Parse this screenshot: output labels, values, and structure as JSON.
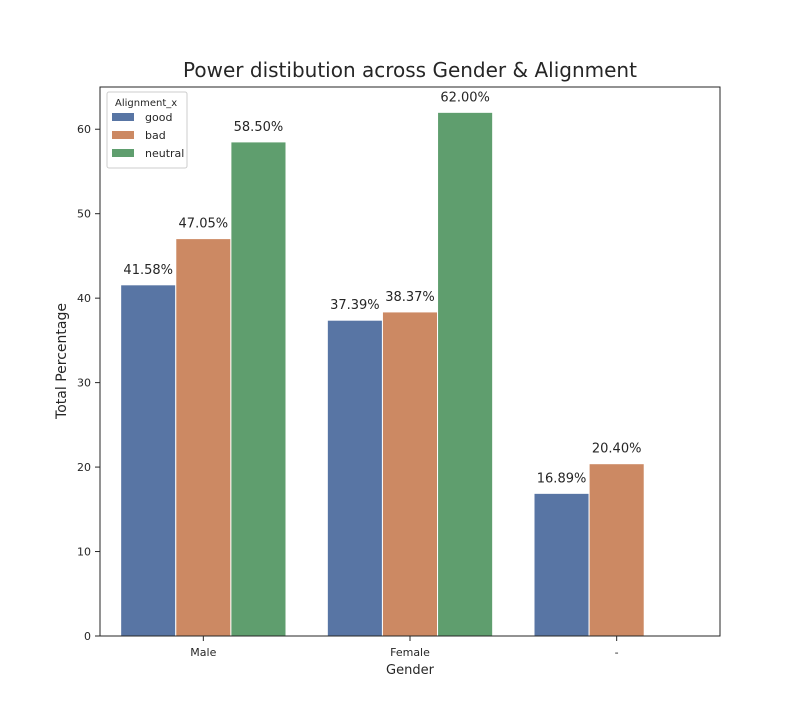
{
  "chart_data": {
    "type": "bar",
    "title": "Power distibution across Gender & Alignment",
    "xlabel": "Gender",
    "ylabel": "Total Percentage",
    "categories": [
      "Male",
      "Female",
      "-"
    ],
    "ylim": [
      0,
      65
    ],
    "yticks": [
      0,
      10,
      20,
      30,
      40,
      50,
      60
    ],
    "grid": false,
    "legend": {
      "title": "Alignment_x",
      "placement": "top-left"
    },
    "series": [
      {
        "name": "good",
        "color": "#5875a4",
        "values": [
          41.58,
          37.39,
          16.89
        ],
        "labels": [
          "41.58%",
          "37.39%",
          "16.89%"
        ]
      },
      {
        "name": "bad",
        "color": "#cc8963",
        "values": [
          47.05,
          38.37,
          20.4
        ],
        "labels": [
          "47.05%",
          "38.37%",
          "20.40%"
        ]
      },
      {
        "name": "neutral",
        "color": "#5f9e6e",
        "values": [
          58.5,
          62.0,
          null
        ],
        "labels": [
          "58.50%",
          "62.00%",
          null
        ]
      }
    ]
  }
}
